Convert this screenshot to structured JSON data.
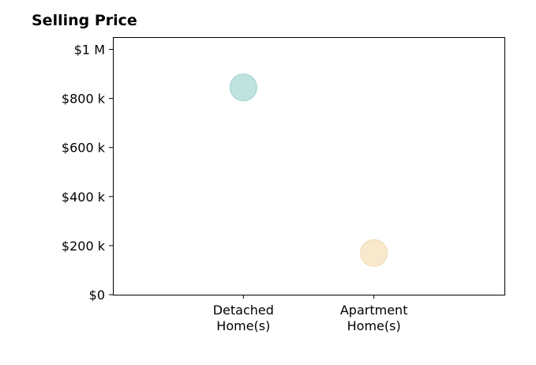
{
  "chart_data": {
    "type": "scatter",
    "title": "Selling Price",
    "xlabel": "",
    "ylabel": "",
    "categories": [
      [
        "Detached",
        "Home(s)"
      ],
      [
        "Apartment",
        "Home(s)"
      ]
    ],
    "values": [
      845000,
      170000
    ],
    "colors": [
      "#bfe3df",
      "#f8e9cc"
    ],
    "edge_colors": [
      "#9fd1cc",
      "#f1dcb3"
    ],
    "ylim": [
      0,
      1050000
    ],
    "yticks": [
      0,
      200000,
      400000,
      600000,
      800000,
      1000000
    ],
    "ytick_labels": [
      "$0",
      "$200 k",
      "$400 k",
      "$600 k",
      "$800 k",
      "$1 M"
    ],
    "xlim": [
      0,
      3
    ],
    "grid": false
  }
}
